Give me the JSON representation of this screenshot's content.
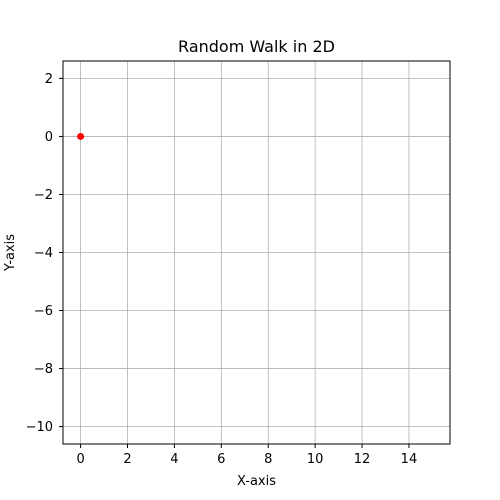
{
  "chart_data": {
    "type": "scatter",
    "title": "Random Walk in 2D",
    "xlabel": "X-axis",
    "ylabel": "Y-axis",
    "xlim": [
      -0.75,
      15.75
    ],
    "ylim": [
      -10.6,
      2.6
    ],
    "xticks": [
      0,
      2,
      4,
      6,
      8,
      10,
      12,
      14
    ],
    "yticks": [
      2,
      0,
      -2,
      -4,
      -6,
      -8,
      -10
    ],
    "grid": true,
    "legend": "none",
    "series": [
      {
        "x": [
          0
        ],
        "y": [
          0
        ],
        "color": "#ff0000"
      }
    ]
  }
}
